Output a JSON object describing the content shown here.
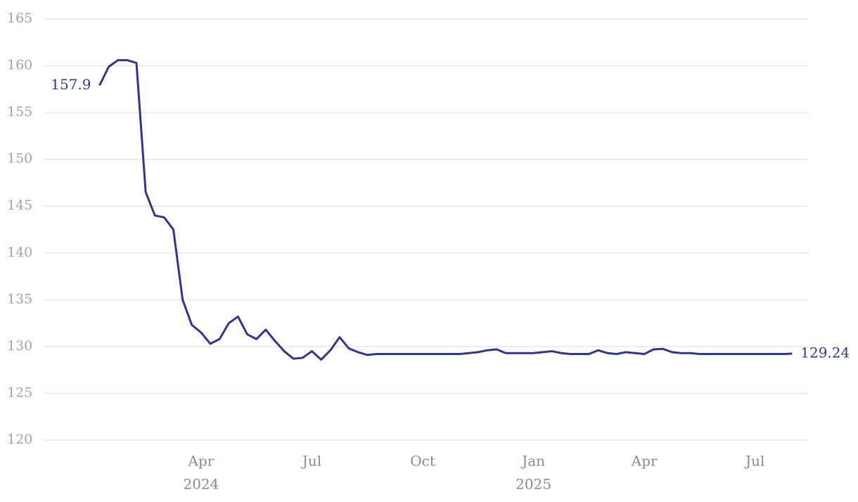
{
  "chart_data": {
    "type": "line",
    "categories": [
      null,
      null,
      null,
      null,
      null,
      null,
      null,
      null,
      null,
      null,
      null,
      [
        "Apr",
        "2024"
      ],
      null,
      null,
      null,
      null,
      null,
      null,
      null,
      null,
      null,
      null,
      null,
      [
        "Jul"
      ],
      null,
      null,
      null,
      null,
      null,
      null,
      null,
      null,
      null,
      null,
      null,
      [
        "Oct"
      ],
      null,
      null,
      null,
      null,
      null,
      null,
      null,
      null,
      null,
      null,
      null,
      [
        "Jan",
        "2025"
      ],
      null,
      null,
      null,
      null,
      null,
      null,
      null,
      null,
      null,
      null,
      null,
      [
        "Apr"
      ],
      null,
      null,
      null,
      null,
      null,
      null,
      null,
      null,
      null,
      null,
      null,
      [
        "Jul"
      ],
      null,
      null,
      null,
      null
    ],
    "series": [
      {
        "color": "#33348e",
        "values": [
          157.9,
          159.9,
          160.6,
          160.6,
          160.3,
          146.5,
          144,
          143.8,
          142.5,
          135,
          132.3,
          131.5,
          130.3,
          130.8,
          132.5,
          133.2,
          131.3,
          130.8,
          131.8,
          130.6,
          129.5,
          128.7,
          128.8,
          129.5,
          128.6,
          129.6,
          131,
          129.8,
          129.4,
          129.1,
          129.2,
          129.2,
          129.2,
          129.2,
          129.2,
          129.2,
          129.2,
          129.2,
          129.2,
          129.2,
          129.3,
          129.4,
          129.6,
          129.7,
          129.3,
          129.3,
          129.3,
          129.3,
          129.4,
          129.5,
          129.3,
          129.2,
          129.2,
          129.2,
          129.6,
          129.3,
          129.2,
          129.4,
          129.3,
          129.2,
          129.7,
          129.75,
          129.4,
          129.3,
          129.3,
          129.2,
          129.2,
          129.2,
          129.2,
          129.2,
          129.2,
          129.2,
          129.2,
          129.2,
          129.2,
          129.24
        ]
      }
    ],
    "end_labels": true,
    "ylim": [
      120,
      165
    ],
    "yticks": [
      120,
      125,
      130,
      135,
      140,
      145,
      150,
      155,
      160,
      165
    ],
    "grid": true
  }
}
